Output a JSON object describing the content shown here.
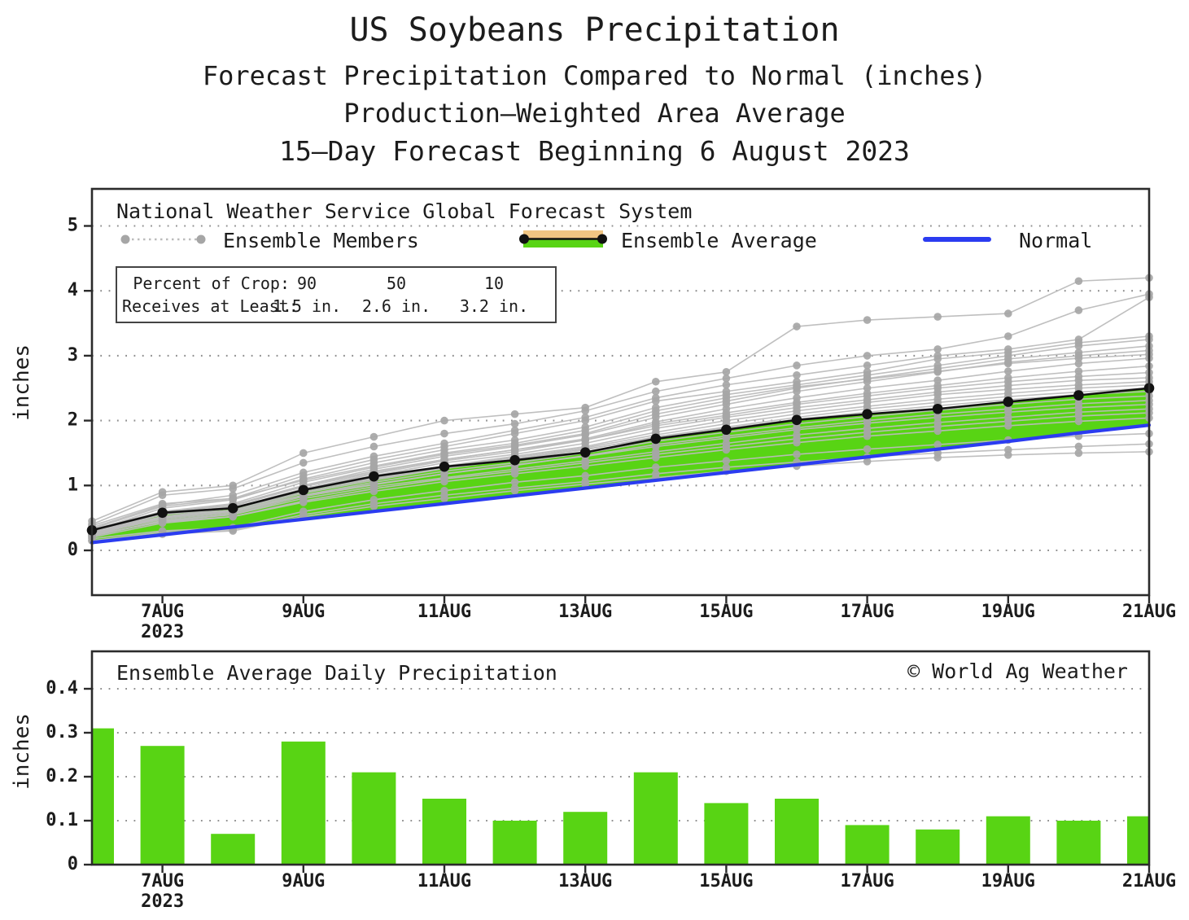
{
  "titles": {
    "line1": "US Soybeans Precipitation",
    "line2": "Forecast Precipitation Compared to Normal (inches)",
    "line3": "Production–Weighted Area Average",
    "line4": "15–Day Forecast Beginning 6 August 2023"
  },
  "colors": {
    "ensemble_member_line": "#bcbcbc",
    "ensemble_member_dot": "#a6a6a6",
    "ensemble_average": "#111111",
    "normal": "#2b3cf0",
    "surplus_fill": "#58d414",
    "deficit_fill": "#f0c583",
    "bar_fill": "#58d414",
    "grid": "#8f8f8f",
    "frame": "#2b2b2b",
    "text": "#1c1c1c"
  },
  "top_chart": {
    "source_label": "National Weather Service Global Forecast System",
    "legend": {
      "members": "Ensemble Members",
      "average": "Ensemble Average",
      "normal": "Normal"
    },
    "crop_box": {
      "row1_label": "Percent of Crop:",
      "row1": [
        "90",
        "50",
        "10"
      ],
      "row2_label": "Receives at Least:",
      "row2": [
        "1.5 in.",
        "2.6 in.",
        "3.2 in."
      ]
    },
    "ylabel": "inches"
  },
  "bottom_chart": {
    "title": "Ensemble Average Daily Precipitation",
    "copyright": "© World Ag Weather",
    "ylabel": "inches"
  },
  "chart_data": [
    {
      "type": "line",
      "title": "Forecast cumulative precipitation compared to normal",
      "x_days": [
        6,
        7,
        8,
        9,
        10,
        11,
        12,
        13,
        14,
        15,
        16,
        17,
        18,
        19,
        20,
        21
      ],
      "x_tick_labels": [
        {
          "day": 7,
          "label": "7AUG",
          "sub": "2023"
        },
        {
          "day": 9,
          "label": "9AUG"
        },
        {
          "day": 11,
          "label": "11AUG"
        },
        {
          "day": 13,
          "label": "13AUG"
        },
        {
          "day": 15,
          "label": "15AUG"
        },
        {
          "day": 17,
          "label": "17AUG"
        },
        {
          "day": 19,
          "label": "19AUG"
        },
        {
          "day": 21,
          "label": "21AUG"
        }
      ],
      "yticks": [
        0,
        1,
        2,
        3,
        4,
        5
      ],
      "ytick_labels": [
        "0",
        "1",
        "2",
        "3",
        "4",
        "5"
      ],
      "ylim": [
        -0.69,
        5.57
      ],
      "ylabel": "inches",
      "grid": true,
      "series": [
        {
          "name": "Ensemble Average",
          "values": [
            0.31,
            0.58,
            0.65,
            0.93,
            1.14,
            1.29,
            1.39,
            1.51,
            1.72,
            1.86,
            2.01,
            2.1,
            2.18,
            2.29,
            2.39,
            2.5
          ]
        },
        {
          "name": "Normal",
          "values": [
            0.12,
            0.24,
            0.36,
            0.48,
            0.6,
            0.72,
            0.84,
            0.96,
            1.08,
            1.2,
            1.32,
            1.44,
            1.56,
            1.68,
            1.81,
            1.93
          ]
        }
      ],
      "ensemble_members": [
        [
          0.45,
          0.9,
          1.0,
          1.5,
          1.75,
          2.0,
          2.1,
          2.2,
          2.6,
          2.75,
          3.45,
          3.55,
          3.6,
          3.65,
          4.15,
          4.2
        ],
        [
          0.4,
          0.85,
          0.95,
          1.35,
          1.6,
          1.8,
          1.95,
          2.15,
          2.45,
          2.65,
          2.85,
          3.0,
          3.1,
          3.3,
          3.7,
          3.95
        ],
        [
          0.35,
          0.7,
          0.85,
          1.2,
          1.45,
          1.65,
          1.85,
          2.05,
          2.35,
          2.55,
          2.7,
          2.85,
          3.0,
          3.1,
          3.25,
          3.9
        ],
        [
          0.38,
          0.72,
          0.8,
          1.15,
          1.4,
          1.6,
          1.8,
          2.0,
          2.3,
          2.45,
          2.6,
          2.75,
          2.95,
          3.05,
          3.2,
          3.3
        ],
        [
          0.3,
          0.65,
          0.78,
          1.1,
          1.35,
          1.55,
          1.7,
          1.9,
          2.2,
          2.4,
          2.55,
          2.7,
          2.85,
          3.0,
          3.15,
          3.25
        ],
        [
          0.32,
          0.6,
          0.72,
          1.05,
          1.28,
          1.48,
          1.62,
          1.8,
          2.1,
          2.3,
          2.5,
          2.65,
          2.8,
          2.95,
          3.05,
          3.15
        ],
        [
          0.28,
          0.58,
          0.7,
          1.0,
          1.25,
          1.45,
          1.6,
          1.78,
          2.05,
          2.25,
          2.45,
          2.6,
          2.75,
          2.9,
          3.0,
          3.08
        ],
        [
          0.33,
          0.68,
          0.8,
          1.08,
          1.3,
          1.5,
          1.65,
          1.85,
          2.15,
          2.35,
          2.52,
          2.64,
          2.76,
          2.88,
          2.96,
          3.02
        ],
        [
          0.27,
          0.55,
          0.68,
          0.98,
          1.2,
          1.4,
          1.55,
          1.72,
          1.98,
          2.18,
          2.35,
          2.5,
          2.62,
          2.76,
          2.88,
          2.96
        ],
        [
          0.25,
          0.52,
          0.65,
          0.95,
          1.18,
          1.38,
          1.52,
          1.7,
          1.95,
          2.12,
          2.28,
          2.42,
          2.54,
          2.66,
          2.76,
          2.84
        ],
        [
          0.3,
          0.58,
          0.7,
          1.0,
          1.22,
          1.4,
          1.55,
          1.7,
          1.92,
          2.08,
          2.25,
          2.38,
          2.5,
          2.6,
          2.68,
          2.74
        ],
        [
          0.28,
          0.55,
          0.65,
          0.95,
          1.15,
          1.35,
          1.48,
          1.65,
          1.88,
          2.05,
          2.2,
          2.32,
          2.44,
          2.54,
          2.62,
          2.66
        ],
        [
          0.26,
          0.52,
          0.62,
          0.92,
          1.12,
          1.3,
          1.45,
          1.6,
          1.82,
          2.0,
          2.15,
          2.28,
          2.4,
          2.48,
          2.55,
          2.6
        ],
        [
          0.3,
          0.56,
          0.66,
          0.93,
          1.11,
          1.29,
          1.43,
          1.58,
          1.78,
          1.95,
          2.1,
          2.22,
          2.33,
          2.42,
          2.5,
          2.55
        ],
        [
          0.24,
          0.5,
          0.6,
          0.88,
          1.08,
          1.26,
          1.4,
          1.55,
          1.75,
          1.9,
          2.05,
          2.18,
          2.28,
          2.37,
          2.44,
          2.5
        ],
        [
          0.28,
          0.52,
          0.62,
          0.9,
          1.1,
          1.27,
          1.41,
          1.56,
          1.73,
          1.88,
          2.02,
          2.13,
          2.23,
          2.32,
          2.4,
          2.45
        ],
        [
          0.25,
          0.48,
          0.58,
          0.85,
          1.05,
          1.22,
          1.35,
          1.5,
          1.68,
          1.82,
          1.95,
          2.06,
          2.16,
          2.25,
          2.33,
          2.38
        ],
        [
          0.22,
          0.46,
          0.56,
          0.83,
          1.01,
          1.18,
          1.31,
          1.46,
          1.63,
          1.76,
          1.89,
          2.0,
          2.1,
          2.18,
          2.26,
          2.31
        ],
        [
          0.26,
          0.5,
          0.6,
          0.85,
          1.02,
          1.18,
          1.32,
          1.45,
          1.6,
          1.73,
          1.86,
          1.96,
          2.05,
          2.13,
          2.2,
          2.25
        ],
        [
          0.22,
          0.45,
          0.55,
          0.8,
          0.98,
          1.12,
          1.25,
          1.38,
          1.52,
          1.65,
          1.78,
          1.88,
          1.97,
          2.05,
          2.13,
          2.18
        ],
        [
          0.2,
          0.42,
          0.52,
          0.76,
          0.95,
          1.1,
          1.22,
          1.35,
          1.48,
          1.6,
          1.72,
          1.82,
          1.91,
          1.99,
          2.07,
          2.12
        ],
        [
          0.24,
          0.44,
          0.52,
          0.74,
          0.91,
          1.06,
          1.18,
          1.3,
          1.43,
          1.55,
          1.66,
          1.76,
          1.84,
          1.92,
          1.99,
          2.04
        ],
        [
          0.18,
          0.3,
          0.35,
          0.6,
          0.78,
          0.92,
          1.05,
          1.15,
          1.28,
          1.38,
          1.48,
          1.56,
          1.63,
          1.7,
          1.76,
          1.8
        ],
        [
          0.15,
          0.28,
          0.32,
          0.55,
          0.72,
          0.85,
          0.96,
          1.06,
          1.18,
          1.28,
          1.36,
          1.44,
          1.5,
          1.55,
          1.6,
          1.64
        ],
        [
          0.15,
          0.25,
          0.3,
          0.52,
          0.68,
          0.8,
          0.92,
          1.02,
          1.12,
          1.22,
          1.3,
          1.37,
          1.43,
          1.47,
          1.5,
          1.52
        ]
      ]
    },
    {
      "type": "bar",
      "title": "Ensemble Average Daily Precipitation",
      "x_days": [
        6,
        7,
        8,
        9,
        10,
        11,
        12,
        13,
        14,
        15,
        16,
        17,
        18,
        19,
        20,
        21
      ],
      "x_tick_labels": [
        {
          "day": 7,
          "label": "7AUG",
          "sub": "2023"
        },
        {
          "day": 9,
          "label": "9AUG"
        },
        {
          "day": 11,
          "label": "11AUG"
        },
        {
          "day": 13,
          "label": "13AUG"
        },
        {
          "day": 15,
          "label": "15AUG"
        },
        {
          "day": 17,
          "label": "17AUG"
        },
        {
          "day": 19,
          "label": "19AUG"
        },
        {
          "day": 21,
          "label": "21AUG"
        }
      ],
      "yticks": [
        0,
        0.1,
        0.2,
        0.3,
        0.4
      ],
      "ytick_labels": [
        "0",
        "0.1",
        "0.2",
        "0.3",
        "0.4"
      ],
      "ylim": [
        0,
        0.485
      ],
      "ylabel": "inches",
      "grid": true,
      "values": [
        0.31,
        0.27,
        0.07,
        0.28,
        0.21,
        0.15,
        0.1,
        0.12,
        0.21,
        0.14,
        0.15,
        0.09,
        0.08,
        0.11,
        0.1,
        0.11
      ]
    }
  ]
}
